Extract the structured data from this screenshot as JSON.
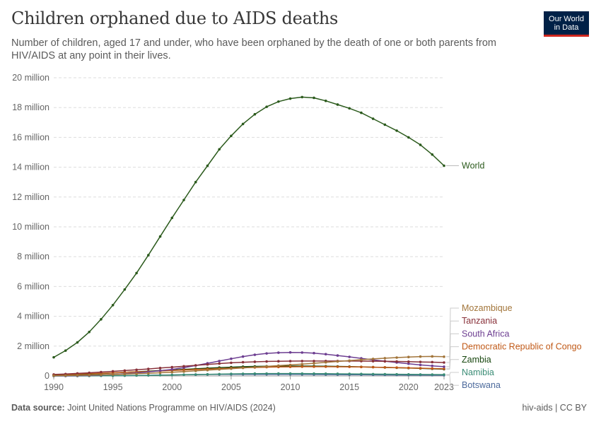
{
  "header": {
    "title": "Children orphaned due to AIDS deaths",
    "subtitle": "Number of children, aged 17 and under, who have been orphaned by the death of one or both parents from HIV/AIDS at any point in their lives."
  },
  "logo": {
    "line1": "Our World",
    "line2": "in Data"
  },
  "footer": {
    "source_label": "Data source:",
    "source_text": "Joint United Nations Programme on HIV/AIDS (2024)",
    "right_text": "hiv-aids | CC BY"
  },
  "chart_data": {
    "type": "line",
    "title": "Children orphaned due to AIDS deaths",
    "xlim": [
      1990,
      2023
    ],
    "ylim": [
      0,
      20000000
    ],
    "x_ticks": [
      1990,
      1995,
      2000,
      2005,
      2010,
      2015,
      2020,
      2023
    ],
    "y_ticks": [
      0,
      2000000,
      4000000,
      6000000,
      8000000,
      10000000,
      12000000,
      14000000,
      16000000,
      18000000,
      20000000
    ],
    "y_tick_labels": [
      "0",
      "2 million",
      "4 million",
      "6 million",
      "8 million",
      "10 million",
      "12 million",
      "14 million",
      "16 million",
      "18 million",
      "20 million"
    ],
    "grid": "horizontal dashed",
    "legend": "right end labels",
    "x": [
      1990,
      1991,
      1992,
      1993,
      1994,
      1995,
      1996,
      1997,
      1998,
      1999,
      2000,
      2001,
      2002,
      2003,
      2004,
      2005,
      2006,
      2007,
      2008,
      2009,
      2010,
      2011,
      2012,
      2013,
      2014,
      2015,
      2016,
      2017,
      2018,
      2019,
      2020,
      2021,
      2022,
      2023
    ],
    "series": [
      {
        "name": "World",
        "color": "#2b5a1c",
        "values": [
          1250000,
          1700000,
          2250000,
          2950000,
          3800000,
          4750000,
          5800000,
          6900000,
          8100000,
          9350000,
          10600000,
          11800000,
          13000000,
          14100000,
          15200000,
          16100000,
          16900000,
          17550000,
          18050000,
          18400000,
          18600000,
          18700000,
          18650000,
          18450000,
          18200000,
          17950000,
          17650000,
          17250000,
          16850000,
          16450000,
          16000000,
          15500000,
          14850000,
          14100000
        ]
      },
      {
        "name": "Mozambique",
        "color": "#a2753a",
        "values": [
          20000,
          30000,
          45000,
          60000,
          80000,
          100000,
          125000,
          150000,
          180000,
          215000,
          250000,
          290000,
          340000,
          390000,
          440000,
          490000,
          540000,
          590000,
          640000,
          690000,
          740000,
          790000,
          850000,
          910000,
          970000,
          1030000,
          1090000,
          1140000,
          1190000,
          1230000,
          1270000,
          1300000,
          1310000,
          1290000
        ]
      },
      {
        "name": "Tanzania",
        "color": "#883039",
        "values": [
          100000,
          130000,
          170000,
          210000,
          260000,
          310000,
          360000,
          410000,
          470000,
          530000,
          590000,
          650000,
          710000,
          770000,
          830000,
          880000,
          920000,
          950000,
          970000,
          985000,
          995000,
          1000000,
          1000000,
          1000000,
          1000000,
          1000000,
          995000,
          990000,
          980000,
          970000,
          955000,
          940000,
          925000,
          900000
        ]
      },
      {
        "name": "South Africa",
        "color": "#6d3e91",
        "values": [
          10000,
          15000,
          25000,
          40000,
          65000,
          100000,
          145000,
          200000,
          270000,
          350000,
          440000,
          560000,
          700000,
          850000,
          1000000,
          1150000,
          1300000,
          1420000,
          1510000,
          1560000,
          1580000,
          1570000,
          1530000,
          1460000,
          1370000,
          1280000,
          1180000,
          1080000,
          990000,
          900000,
          820000,
          740000,
          680000,
          620000
        ]
      },
      {
        "name": "Democratic Republic of Congo",
        "color": "#c05917",
        "values": [
          80000,
          100000,
          125000,
          150000,
          180000,
          210000,
          240000,
          270000,
          300000,
          330000,
          370000,
          400000,
          430000,
          460000,
          490000,
          520000,
          550000,
          570000,
          590000,
          600000,
          610000,
          620000,
          620000,
          620000,
          615000,
          610000,
          600000,
          590000,
          575000,
          560000,
          540000,
          520000,
          500000,
          480000
        ]
      },
      {
        "name": "Zambia",
        "color": "#18470f",
        "values": [
          50000,
          70000,
          95000,
          125000,
          160000,
          200000,
          240000,
          280000,
          320000,
          360000,
          400000,
          440000,
          480000,
          520000,
          560000,
          590000,
          620000,
          640000,
          650000,
          660000,
          665000,
          665000,
          660000,
          650000,
          640000,
          625000,
          610000,
          590000,
          570000,
          550000,
          530000,
          505000,
          480000,
          455000
        ]
      },
      {
        "name": "Namibia",
        "color": "#3a8c75",
        "values": [
          2000,
          3000,
          5000,
          8000,
          12000,
          17000,
          23000,
          30000,
          40000,
          52000,
          65000,
          80000,
          95000,
          110000,
          125000,
          138000,
          148000,
          155000,
          160000,
          162000,
          162000,
          160000,
          156000,
          150000,
          144000,
          138000,
          131000,
          124000,
          118000,
          112000,
          106000,
          100000,
          95000,
          90000
        ]
      },
      {
        "name": "Botswana",
        "color": "#4c6a9c",
        "values": [
          1000,
          2000,
          4000,
          7000,
          12000,
          18000,
          26000,
          35000,
          45000,
          56000,
          68000,
          80000,
          90000,
          98000,
          104000,
          108000,
          110000,
          111000,
          111000,
          110000,
          108000,
          105000,
          101000,
          97000,
          92000,
          87000,
          82000,
          77000,
          72000,
          67000,
          62000,
          57000,
          53000,
          49000
        ]
      }
    ],
    "end_labels_order": [
      "Mozambique",
      "Tanzania",
      "South Africa",
      "Democratic Republic of Congo",
      "Zambia",
      "Namibia",
      "Botswana"
    ]
  }
}
